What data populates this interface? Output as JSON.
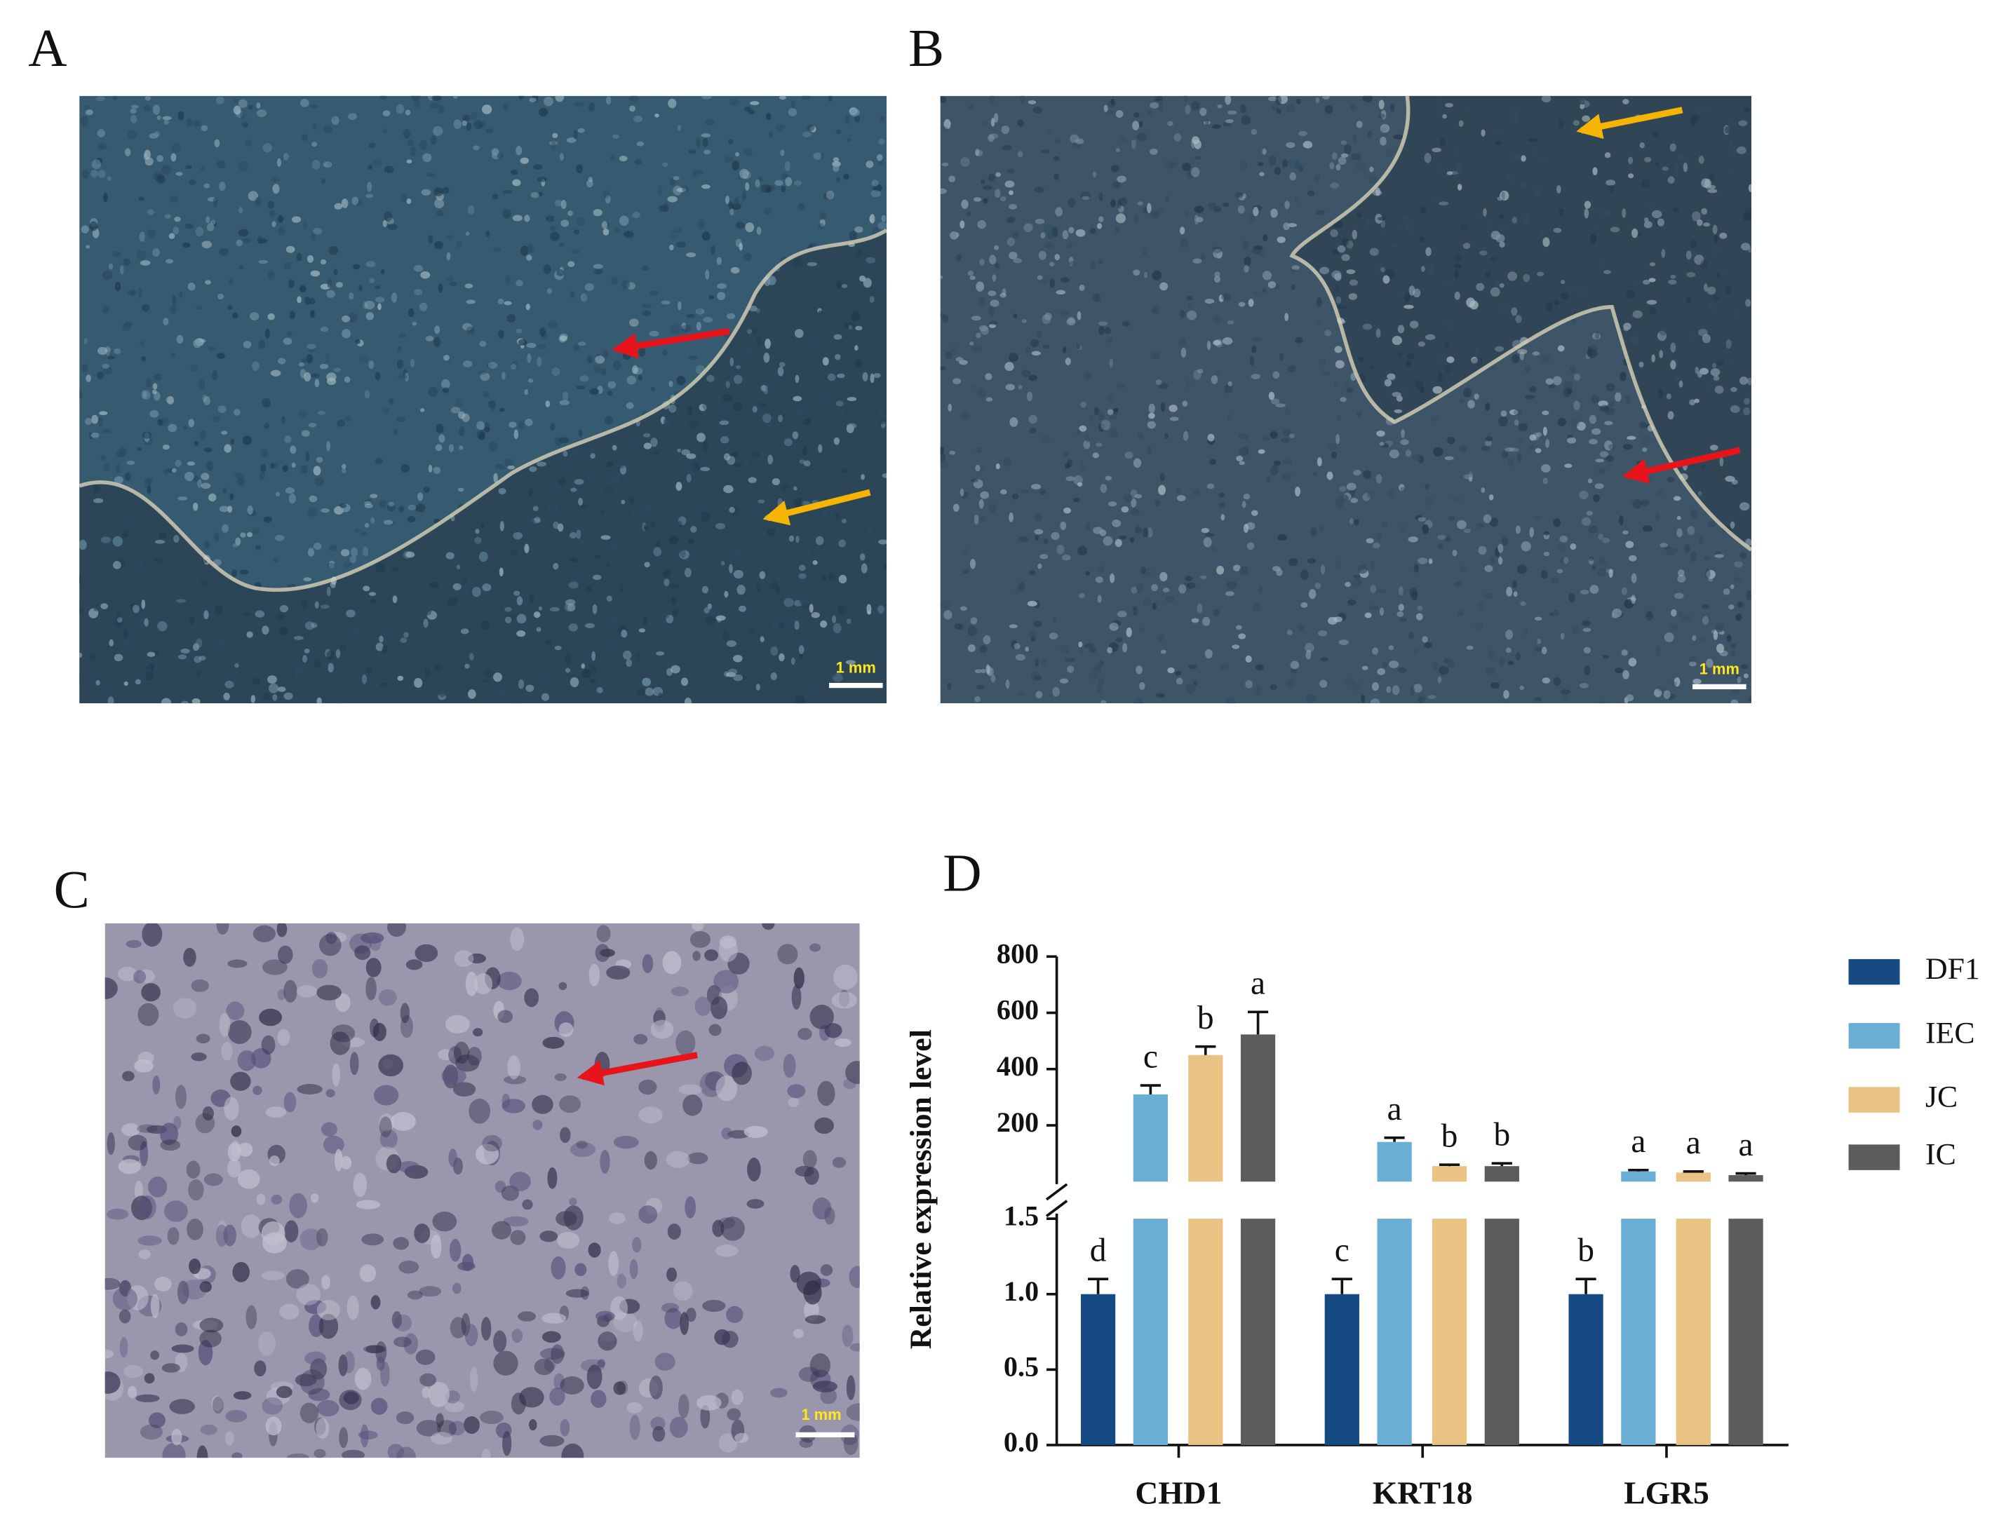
{
  "panels": [
    {
      "label": "A",
      "scale_bar": "1 mm"
    },
    {
      "label": "B",
      "scale_bar": "1 mm"
    },
    {
      "label": "C",
      "scale_bar": "1 mm"
    }
  ],
  "chart_data": {
    "type": "bar",
    "panel_label": "D",
    "ylabel": "Relative expression level",
    "categories": [
      "CHD1",
      "KRT18",
      "LGR5"
    ],
    "series": [
      {
        "name": "DF1",
        "color": "#154b82",
        "values": [
          1.0,
          1.0,
          1.0
        ],
        "errors": [
          0.1,
          0.1,
          0.1
        ],
        "letters": [
          "d",
          "c",
          "b"
        ]
      },
      {
        "name": "IEC",
        "color": "#6aaed6",
        "values": [
          310,
          141,
          36
        ],
        "errors": [
          32,
          15,
          5
        ],
        "letters": [
          "c",
          "a",
          "a"
        ]
      },
      {
        "name": "JC",
        "color": "#e9c284",
        "values": [
          450,
          55,
          32
        ],
        "errors": [
          30,
          5,
          4
        ],
        "letters": [
          "b",
          "b",
          "a"
        ]
      },
      {
        "name": "IC",
        "color": "#5c5c5c",
        "values": [
          523,
          55,
          23
        ],
        "errors": [
          80,
          10,
          6
        ],
        "letters": [
          "a",
          "b",
          "a"
        ]
      }
    ],
    "ylim": [
      0,
      1.5
    ],
    "yticks": [
      {
        "value": 0,
        "label": "0.0"
      },
      0.5,
      {
        "value": 1,
        "label": "1.0"
      },
      {
        "value": 1.5,
        "label": "1.5"
      }
    ],
    "upper_ylim": [
      0,
      800
    ],
    "upper_yticks": [
      200,
      400,
      600,
      800
    ],
    "legend": "right"
  }
}
